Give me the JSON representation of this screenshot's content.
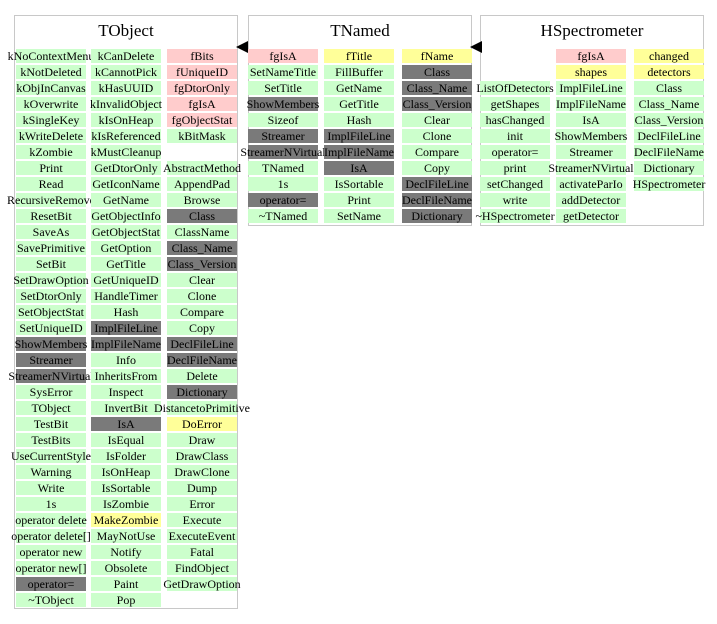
{
  "classes": [
    {
      "id": "tobject",
      "title": "TObject",
      "columns": [
        [
          {
            "t": "kNoContextMenu",
            "c": "g"
          },
          {
            "t": "kNotDeleted",
            "c": "g"
          },
          {
            "t": "kObjInCanvas",
            "c": "g"
          },
          {
            "t": "kOverwrite",
            "c": "g"
          },
          {
            "t": "kSingleKey",
            "c": "g"
          },
          {
            "t": "kWriteDelete",
            "c": "g"
          },
          {
            "t": "kZombie",
            "c": "g"
          },
          {
            "t": "Print",
            "c": "g"
          },
          {
            "t": "Read",
            "c": "g"
          },
          {
            "t": "RecursiveRemove",
            "c": "g"
          },
          {
            "t": "ResetBit",
            "c": "g"
          },
          {
            "t": "SaveAs",
            "c": "g"
          },
          {
            "t": "SavePrimitive",
            "c": "g"
          },
          {
            "t": "SetBit",
            "c": "g"
          },
          {
            "t": "SetDrawOption",
            "c": "g"
          },
          {
            "t": "SetDtorOnly",
            "c": "g"
          },
          {
            "t": "SetObjectStat",
            "c": "g"
          },
          {
            "t": "SetUniqueID",
            "c": "g"
          },
          {
            "t": "ShowMembers",
            "c": "d"
          },
          {
            "t": "Streamer",
            "c": "d"
          },
          {
            "t": "StreamerNVirtual",
            "c": "d"
          },
          {
            "t": "SysError",
            "c": "g"
          },
          {
            "t": "TObject",
            "c": "g"
          },
          {
            "t": "TestBit",
            "c": "g"
          },
          {
            "t": "TestBits",
            "c": "g"
          },
          {
            "t": "UseCurrentStyle",
            "c": "g"
          },
          {
            "t": "Warning",
            "c": "g"
          },
          {
            "t": "Write",
            "c": "g"
          },
          {
            "t": "1s",
            "c": "g"
          },
          {
            "t": "operator delete",
            "c": "g"
          },
          {
            "t": "operator delete[]",
            "c": "g"
          },
          {
            "t": "operator new",
            "c": "g"
          },
          {
            "t": "operator new[]",
            "c": "g"
          },
          {
            "t": "operator=",
            "c": "d"
          },
          {
            "t": "~TObject",
            "c": "g"
          }
        ],
        [
          {
            "t": "kCanDelete",
            "c": "g"
          },
          {
            "t": "kCannotPick",
            "c": "g"
          },
          {
            "t": "kHasUUID",
            "c": "g"
          },
          {
            "t": "kInvalidObject",
            "c": "g"
          },
          {
            "t": "kIsOnHeap",
            "c": "g"
          },
          {
            "t": "kIsReferenced",
            "c": "g"
          },
          {
            "t": "kMustCleanup",
            "c": "g"
          },
          {
            "t": "GetDtorOnly",
            "c": "g"
          },
          {
            "t": "GetIconName",
            "c": "g"
          },
          {
            "t": "GetName",
            "c": "g"
          },
          {
            "t": "GetObjectInfo",
            "c": "g"
          },
          {
            "t": "GetObjectStat",
            "c": "g"
          },
          {
            "t": "GetOption",
            "c": "g"
          },
          {
            "t": "GetTitle",
            "c": "g"
          },
          {
            "t": "GetUniqueID",
            "c": "g"
          },
          {
            "t": "HandleTimer",
            "c": "g"
          },
          {
            "t": "Hash",
            "c": "g"
          },
          {
            "t": "ImplFileLine",
            "c": "d"
          },
          {
            "t": "ImplFileName",
            "c": "d"
          },
          {
            "t": "Info",
            "c": "g"
          },
          {
            "t": "InheritsFrom",
            "c": "g"
          },
          {
            "t": "Inspect",
            "c": "g"
          },
          {
            "t": "InvertBit",
            "c": "g"
          },
          {
            "t": "IsA",
            "c": "d"
          },
          {
            "t": "IsEqual",
            "c": "g"
          },
          {
            "t": "IsFolder",
            "c": "g"
          },
          {
            "t": "IsOnHeap",
            "c": "g"
          },
          {
            "t": "IsSortable",
            "c": "g"
          },
          {
            "t": "IsZombie",
            "c": "g"
          },
          {
            "t": "MakeZombie",
            "c": "y"
          },
          {
            "t": "MayNotUse",
            "c": "g"
          },
          {
            "t": "Notify",
            "c": "g"
          },
          {
            "t": "Obsolete",
            "c": "g"
          },
          {
            "t": "Paint",
            "c": "g"
          },
          {
            "t": "Pop",
            "c": "g"
          }
        ],
        [
          {
            "t": "fBits",
            "c": "p"
          },
          {
            "t": "fUniqueID",
            "c": "p"
          },
          {
            "t": "fgDtorOnly",
            "c": "p"
          },
          {
            "t": "fgIsA",
            "c": "p"
          },
          {
            "t": "fgObjectStat",
            "c": "p"
          },
          {
            "t": "kBitMask",
            "c": "g"
          },
          {
            "t": "",
            "c": "none"
          },
          {
            "t": "AbstractMethod",
            "c": "g"
          },
          {
            "t": "AppendPad",
            "c": "g"
          },
          {
            "t": "Browse",
            "c": "g"
          },
          {
            "t": "Class",
            "c": "d"
          },
          {
            "t": "ClassName",
            "c": "g"
          },
          {
            "t": "Class_Name",
            "c": "d"
          },
          {
            "t": "Class_Version",
            "c": "d"
          },
          {
            "t": "Clear",
            "c": "g"
          },
          {
            "t": "Clone",
            "c": "g"
          },
          {
            "t": "Compare",
            "c": "g"
          },
          {
            "t": "Copy",
            "c": "g"
          },
          {
            "t": "DeclFileLine",
            "c": "d"
          },
          {
            "t": "DeclFileName",
            "c": "d"
          },
          {
            "t": "Delete",
            "c": "g"
          },
          {
            "t": "Dictionary",
            "c": "d"
          },
          {
            "t": "DistancetoPrimitive",
            "c": "g"
          },
          {
            "t": "DoError",
            "c": "y"
          },
          {
            "t": "Draw",
            "c": "g"
          },
          {
            "t": "DrawClass",
            "c": "g"
          },
          {
            "t": "DrawClone",
            "c": "g"
          },
          {
            "t": "Dump",
            "c": "g"
          },
          {
            "t": "Error",
            "c": "g"
          },
          {
            "t": "Execute",
            "c": "g"
          },
          {
            "t": "ExecuteEvent",
            "c": "g"
          },
          {
            "t": "Fatal",
            "c": "g"
          },
          {
            "t": "FindObject",
            "c": "g"
          },
          {
            "t": "GetDrawOption",
            "c": "g"
          }
        ]
      ]
    },
    {
      "id": "tnamed",
      "title": "TNamed",
      "columns": [
        [
          {
            "t": "fgIsA",
            "c": "p"
          },
          {
            "t": "SetNameTitle",
            "c": "g"
          },
          {
            "t": "SetTitle",
            "c": "g"
          },
          {
            "t": "ShowMembers",
            "c": "d"
          },
          {
            "t": "Sizeof",
            "c": "g"
          },
          {
            "t": "Streamer",
            "c": "d"
          },
          {
            "t": "StreamerNVirtual",
            "c": "d"
          },
          {
            "t": "TNamed",
            "c": "g"
          },
          {
            "t": "1s",
            "c": "g"
          },
          {
            "t": "operator=",
            "c": "d"
          },
          {
            "t": "~TNamed",
            "c": "g"
          }
        ],
        [
          {
            "t": "fTitle",
            "c": "y"
          },
          {
            "t": "FillBuffer",
            "c": "g"
          },
          {
            "t": "GetName",
            "c": "g"
          },
          {
            "t": "GetTitle",
            "c": "g"
          },
          {
            "t": "Hash",
            "c": "g"
          },
          {
            "t": "ImplFileLine",
            "c": "d"
          },
          {
            "t": "ImplFileName",
            "c": "d"
          },
          {
            "t": "IsA",
            "c": "d"
          },
          {
            "t": "IsSortable",
            "c": "g"
          },
          {
            "t": "Print",
            "c": "g"
          },
          {
            "t": "SetName",
            "c": "g"
          }
        ],
        [
          {
            "t": "fName",
            "c": "y"
          },
          {
            "t": "Class",
            "c": "d"
          },
          {
            "t": "Class_Name",
            "c": "d"
          },
          {
            "t": "Class_Version",
            "c": "d"
          },
          {
            "t": "Clear",
            "c": "g"
          },
          {
            "t": "Clone",
            "c": "g"
          },
          {
            "t": "Compare",
            "c": "g"
          },
          {
            "t": "Copy",
            "c": "g"
          },
          {
            "t": "DeclFileLine",
            "c": "d"
          },
          {
            "t": "DeclFileName",
            "c": "d"
          },
          {
            "t": "Dictionary",
            "c": "d"
          }
        ]
      ]
    },
    {
      "id": "hspectrometer",
      "title": "HSpectrometer",
      "columns": [
        [
          {
            "t": "",
            "c": "none"
          },
          {
            "t": "",
            "c": "none"
          },
          {
            "t": "ListOfDetectors",
            "c": "g"
          },
          {
            "t": "getShapes",
            "c": "g"
          },
          {
            "t": "hasChanged",
            "c": "g"
          },
          {
            "t": "init",
            "c": "g"
          },
          {
            "t": "operator=",
            "c": "g"
          },
          {
            "t": "print",
            "c": "g"
          },
          {
            "t": "setChanged",
            "c": "g"
          },
          {
            "t": "write",
            "c": "g"
          },
          {
            "t": "~HSpectrometer",
            "c": "g"
          }
        ],
        [
          {
            "t": "fgIsA",
            "c": "p"
          },
          {
            "t": "shapes",
            "c": "y"
          },
          {
            "t": "ImplFileLine",
            "c": "g"
          },
          {
            "t": "ImplFileName",
            "c": "g"
          },
          {
            "t": "IsA",
            "c": "g"
          },
          {
            "t": "ShowMembers",
            "c": "g"
          },
          {
            "t": "Streamer",
            "c": "g"
          },
          {
            "t": "StreamerNVirtual",
            "c": "g"
          },
          {
            "t": "activateParIo",
            "c": "g"
          },
          {
            "t": "addDetector",
            "c": "g"
          },
          {
            "t": "getDetector",
            "c": "g"
          }
        ],
        [
          {
            "t": "changed",
            "c": "y"
          },
          {
            "t": "detectors",
            "c": "y"
          },
          {
            "t": "Class",
            "c": "g"
          },
          {
            "t": "Class_Name",
            "c": "g"
          },
          {
            "t": "Class_Version",
            "c": "g"
          },
          {
            "t": "DeclFileLine",
            "c": "g"
          },
          {
            "t": "DeclFileName",
            "c": "g"
          },
          {
            "t": "Dictionary",
            "c": "g"
          },
          {
            "t": "HSpectrometer",
            "c": "g"
          }
        ]
      ]
    }
  ],
  "colors": {
    "method": "#ccffcc",
    "member": "#ffcccc",
    "highlight": "#ffff99",
    "inherited": "#7a7a7a",
    "border": "#c8c8c8"
  }
}
